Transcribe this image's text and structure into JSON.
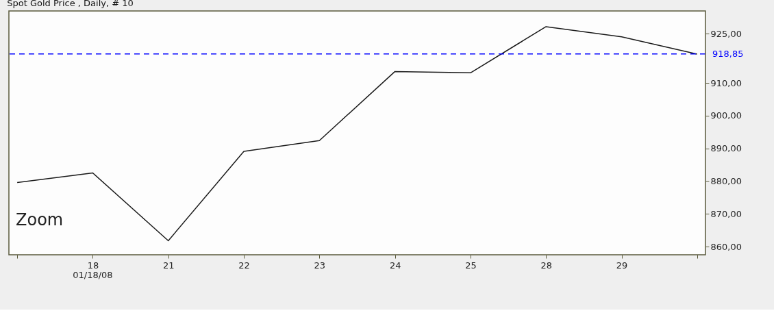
{
  "chart_data": {
    "type": "line",
    "title": "Spot Gold Price , Daily, # 10",
    "categories": [
      null,
      "18",
      "21",
      "22",
      "23",
      "24",
      "25",
      "28",
      "29",
      null
    ],
    "series": [
      {
        "color": "#1a1a1a",
        "values": [
          879.6,
          882.5,
          861.8,
          889.1,
          892.4,
          913.5,
          913.1,
          927.2,
          924.1,
          918.8
        ]
      }
    ],
    "ylim": [
      857.5,
      932
    ],
    "yticks": [
      {
        "value": 860,
        "label": "860,00"
      },
      {
        "value": 870,
        "label": "870,00"
      },
      {
        "value": 880,
        "label": "880,00"
      },
      {
        "value": 890,
        "label": "890,00"
      },
      {
        "value": 900,
        "label": "900,00"
      },
      {
        "value": 910,
        "label": "910,00"
      },
      {
        "value": 925,
        "label": "925,00"
      }
    ],
    "ref_lines": [
      {
        "axis": "y",
        "value": 918.85,
        "label": "918,85",
        "color": "#0000ff",
        "line_style": "dashed"
      }
    ],
    "annotations": [
      "Zoom",
      "01/18/08"
    ],
    "grid": false,
    "marker": "none",
    "line_style": "solid"
  }
}
